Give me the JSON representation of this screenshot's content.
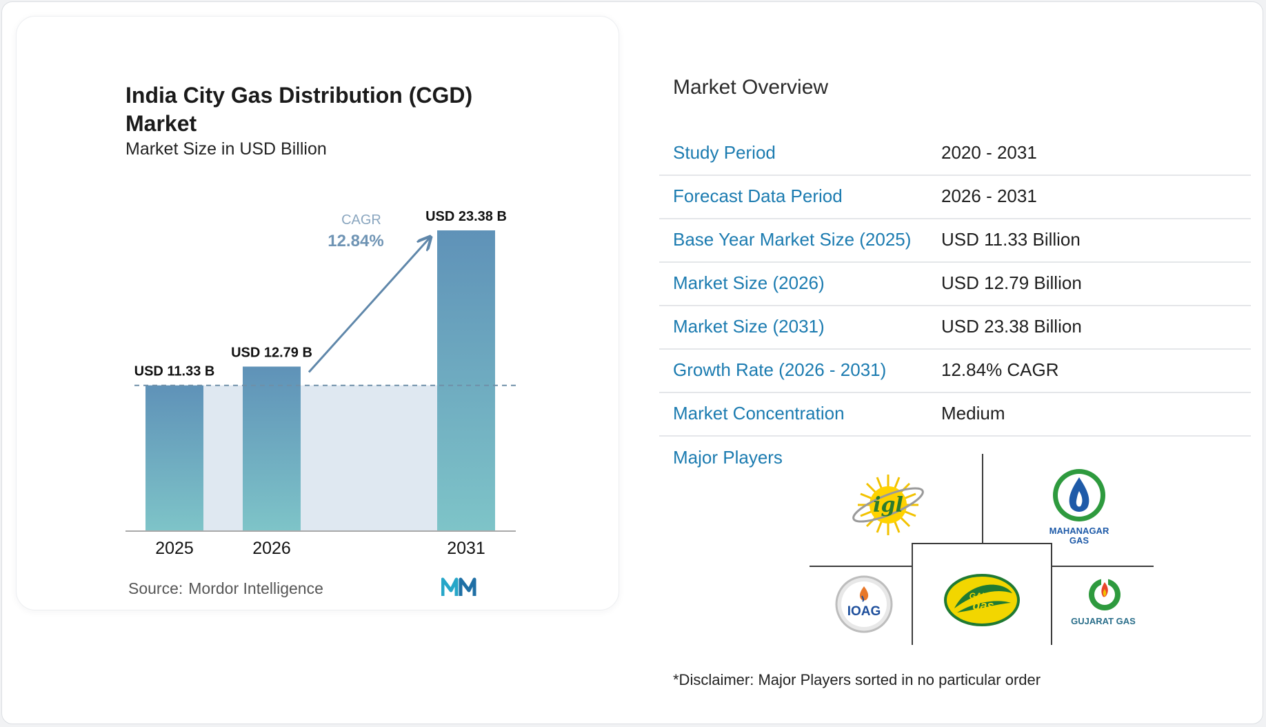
{
  "chart_data": {
    "type": "bar",
    "title": "India City Gas Distribution (CGD) Market",
    "subtitle": "Market Size in USD Billion",
    "categories": [
      "2025",
      "2026",
      "2031"
    ],
    "values": [
      11.33,
      12.79,
      23.38
    ],
    "data_labels": [
      "USD 11.33 B",
      "USD 12.79 B",
      "USD 23.38 B"
    ],
    "cagr_label": "CAGR",
    "cagr_value": "12.84%",
    "baseline_reference_value": 11.33,
    "ylim": [
      0,
      23.38
    ],
    "grid": false,
    "legend": "none",
    "colors": {
      "bar_top": "#5f92b8",
      "bar_bottom": "#7ec4c8",
      "band": "#dfe8f1",
      "arrow": "#5f87aa",
      "cagr_text": "#6f94b4"
    }
  },
  "source": {
    "label": "Source:",
    "name": "Mordor Intelligence"
  },
  "overview": {
    "title": "Market Overview",
    "rows": [
      {
        "label": "Study Period",
        "value": "2020 - 2031"
      },
      {
        "label": "Forecast Data Period",
        "value": "2026 - 2031"
      },
      {
        "label": "Base Year Market Size (2025)",
        "value": "USD 11.33 Billion"
      },
      {
        "label": "Market Size (2026)",
        "value": "USD 12.79 Billion"
      },
      {
        "label": "Market Size (2031)",
        "value": "USD 23.38 Billion"
      },
      {
        "label": "Growth Rate (2026 - 2031)",
        "value": "12.84% CAGR"
      },
      {
        "label": "Market Concentration",
        "value": "Medium"
      }
    ],
    "label_color": "#1b7bb0"
  },
  "players": {
    "label": "Major Players",
    "logos": [
      {
        "icon": "igl-logo",
        "text": "igl"
      },
      {
        "icon": "mahanagar-gas-logo",
        "text": "MAHANAGAR GAS"
      },
      {
        "icon": "ioag-logo",
        "text": "IOAG"
      },
      {
        "icon": "gail-gas-logo",
        "text": "GAIL gas"
      },
      {
        "icon": "gujarat-gas-logo",
        "text": "GUJARAT GAS"
      }
    ]
  },
  "disclaimer": "*Disclaimer: Major Players sorted in no particular order"
}
